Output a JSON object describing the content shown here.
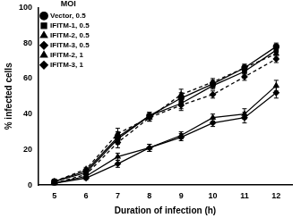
{
  "chart_data": {
    "type": "line",
    "x_label": "Duration of infection (h)",
    "y_label": "% infected cells",
    "legend_title": "MOI",
    "legend": "top-left",
    "grid": false,
    "x": [
      5,
      6,
      7,
      8,
      9,
      10,
      11,
      12
    ],
    "xlim": [
      4.5,
      12.5
    ],
    "xticks": [
      5,
      6,
      7,
      8,
      9,
      10,
      11,
      12
    ],
    "ylim": [
      0,
      100
    ],
    "yticks": [
      0,
      20,
      40,
      60,
      80,
      100
    ],
    "series": [
      {
        "name": "Vector, 0.5",
        "color": "#000000",
        "marker": "circle",
        "line_style": "solid",
        "values": [
          2,
          8,
          27,
          39,
          49,
          57,
          66,
          78
        ],
        "errors": [
          1,
          1,
          3,
          2,
          3,
          2,
          2,
          2
        ]
      },
      {
        "name": "IFITM-1, 0.5",
        "color": "#000000",
        "marker": "square",
        "line_style": "solid",
        "values": [
          2,
          7,
          26,
          39,
          46,
          56,
          64,
          76
        ],
        "errors": [
          1,
          1,
          3,
          2,
          3,
          2,
          2,
          2
        ]
      },
      {
        "name": "IFITM-2, 0.5",
        "color": "#000000",
        "marker": "triangle",
        "line_style": "solid",
        "values": [
          1,
          5,
          16,
          21,
          28,
          38,
          40,
          56
        ],
        "errors": [
          1,
          1,
          2,
          2,
          2,
          2,
          3,
          3
        ]
      },
      {
        "name": "IFITM-3, 0.5",
        "color": "#000000",
        "marker": "diamond",
        "line_style": "solid",
        "values": [
          1,
          4,
          12,
          21,
          27,
          35,
          38,
          52
        ],
        "errors": [
          1,
          1,
          2,
          2,
          2,
          2,
          3,
          3
        ]
      },
      {
        "name": "IFITM-2, 1",
        "color": "#000000",
        "marker": "triangle",
        "line_style": "dashed",
        "values": [
          2,
          9,
          29,
          38,
          51,
          58,
          66,
          74
        ],
        "errors": [
          1,
          1,
          3,
          2,
          3,
          2,
          2,
          2
        ]
      },
      {
        "name": "IFITM-3, 1",
        "color": "#000000",
        "marker": "diamond",
        "line_style": "dashed",
        "values": [
          1,
          6,
          24,
          38,
          45,
          51,
          61,
          71
        ],
        "errors": [
          1,
          1,
          3,
          2,
          3,
          2,
          2,
          2
        ]
      }
    ]
  }
}
